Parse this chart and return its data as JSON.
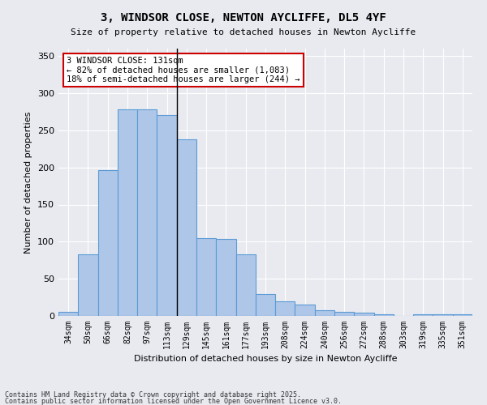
{
  "title": "3, WINDSOR CLOSE, NEWTON AYCLIFFE, DL5 4YF",
  "subtitle": "Size of property relative to detached houses in Newton Aycliffe",
  "xlabel": "Distribution of detached houses by size in Newton Aycliffe",
  "ylabel": "Number of detached properties",
  "categories": [
    "34sqm",
    "50sqm",
    "66sqm",
    "82sqm",
    "97sqm",
    "113sqm",
    "129sqm",
    "145sqm",
    "161sqm",
    "177sqm",
    "193sqm",
    "208sqm",
    "224sqm",
    "240sqm",
    "256sqm",
    "272sqm",
    "288sqm",
    "303sqm",
    "319sqm",
    "335sqm",
    "351sqm"
  ],
  "values": [
    5,
    83,
    196,
    278,
    278,
    270,
    238,
    105,
    104,
    83,
    30,
    20,
    15,
    8,
    6,
    4,
    2,
    0,
    2,
    2,
    2
  ],
  "bar_color": "#aec6e8",
  "bar_edge_color": "#5b9bd5",
  "background_color": "#e8eaf0",
  "plot_bg_color": "#e8eaf0",
  "grid_color": "#ffffff",
  "ylim": [
    0,
    360
  ],
  "yticks": [
    0,
    50,
    100,
    150,
    200,
    250,
    300,
    350
  ],
  "annotation_text": "3 WINDSOR CLOSE: 131sqm\n← 82% of detached houses are smaller (1,083)\n18% of semi-detached houses are larger (244) →",
  "vline_x_index": 5.5,
  "annotation_box_color": "#ffffff",
  "annotation_box_edge": "#cc0000",
  "footer_line1": "Contains HM Land Registry data © Crown copyright and database right 2025.",
  "footer_line2": "Contains public sector information licensed under the Open Government Licence v3.0."
}
